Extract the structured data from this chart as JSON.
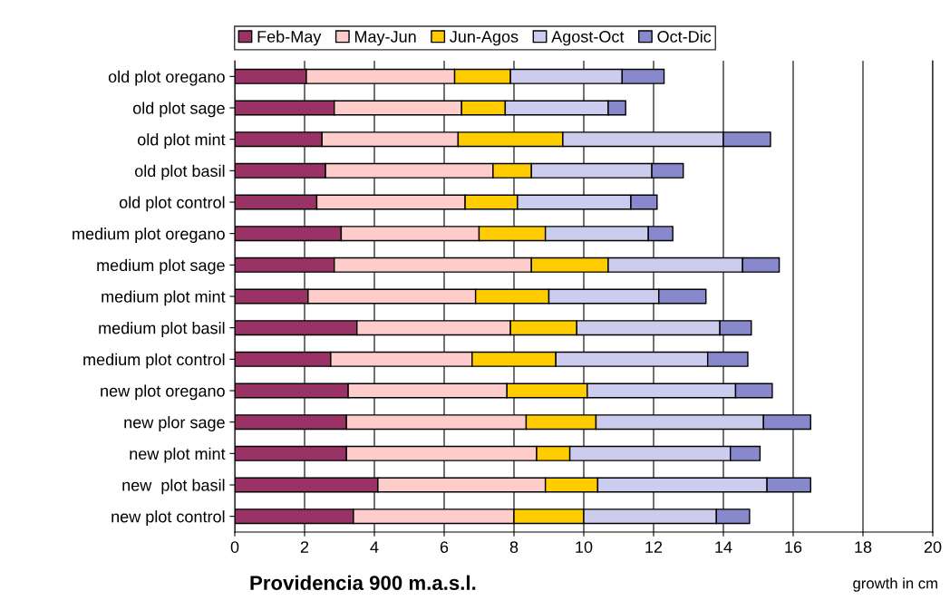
{
  "chart_data": {
    "type": "bar",
    "orientation": "horizontal",
    "stacked": true,
    "title": "Providencia 900 m.a.s.l.",
    "xlabel": "growth in cm",
    "categories": [
      "old plot oregano",
      "old plot sage",
      "old plot mint",
      "old plot basil",
      "old plot control",
      "medium plot oregano",
      "medium plot sage",
      "medium plot mint",
      "medium plot basil",
      "medium plot control",
      "new plot oregano",
      "new plor sage",
      "new plot mint",
      "new  plot basil",
      "new plot control"
    ],
    "series": [
      {
        "name": "Feb-May",
        "color": "#993366",
        "values": [
          2.05,
          2.85,
          2.5,
          2.6,
          2.35,
          3.05,
          2.85,
          2.1,
          3.5,
          2.75,
          3.25,
          3.2,
          3.2,
          4.1,
          3.4
        ]
      },
      {
        "name": "May-Jun",
        "color": "#ffcccc",
        "values": [
          4.25,
          3.65,
          3.9,
          4.8,
          4.25,
          3.95,
          5.65,
          4.8,
          4.4,
          4.05,
          4.55,
          5.15,
          5.45,
          4.8,
          4.6
        ]
      },
      {
        "name": "Jun-Agos",
        "color": "#ffcc00",
        "values": [
          1.6,
          1.25,
          3.0,
          1.1,
          1.5,
          1.9,
          2.2,
          2.1,
          1.9,
          2.4,
          2.3,
          2.0,
          0.95,
          1.5,
          2.0
        ]
      },
      {
        "name": "Agost-Oct",
        "color": "#ccccee",
        "values": [
          3.2,
          2.95,
          4.6,
          3.45,
          3.25,
          2.95,
          3.85,
          3.15,
          4.1,
          4.35,
          4.25,
          4.8,
          4.6,
          4.85,
          3.8
        ]
      },
      {
        "name": "Oct-Dic",
        "color": "#8888cc",
        "values": [
          1.2,
          0.5,
          1.35,
          0.9,
          0.75,
          0.7,
          1.05,
          1.35,
          0.9,
          1.15,
          1.05,
          1.35,
          0.85,
          1.25,
          0.95
        ]
      }
    ],
    "xlim": [
      0,
      20
    ],
    "xticks": [
      0,
      2,
      4,
      6,
      8,
      10,
      12,
      14,
      16,
      18,
      20
    ],
    "grid": "x",
    "legend": "top"
  }
}
